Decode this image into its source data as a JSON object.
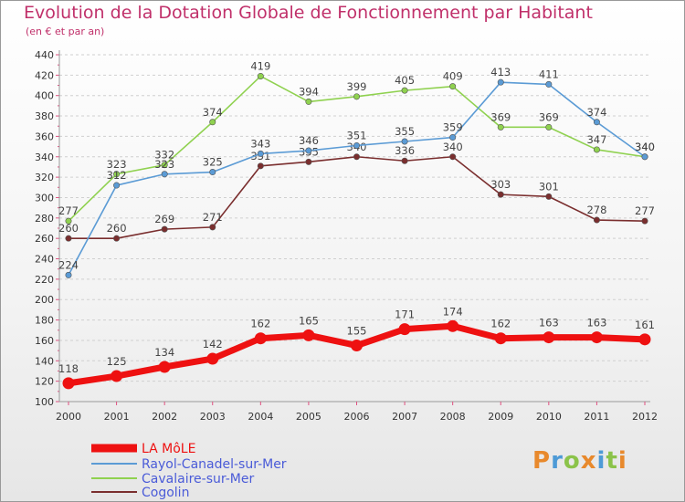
{
  "header": {
    "title": "Evolution de la Dotation Globale de Fonctionnement par Habitant",
    "subtitle": "(en € et par an)"
  },
  "logo": {
    "text": "Proxiti",
    "colors": [
      "#e8892c",
      "#4d9ad6",
      "#8bc34a",
      "#e8892c",
      "#4d9ad6",
      "#8bc34a",
      "#e8892c"
    ]
  },
  "chart_data": {
    "type": "line",
    "x": [
      "2000",
      "2001",
      "2002",
      "2003",
      "2004",
      "2005",
      "2006",
      "2007",
      "2008",
      "2009",
      "2010",
      "2011",
      "2012"
    ],
    "ylim": [
      100,
      440
    ],
    "yticks": [
      100,
      120,
      140,
      160,
      180,
      200,
      220,
      240,
      260,
      280,
      300,
      320,
      340,
      360,
      380,
      400,
      420,
      440
    ],
    "grid": "horizontal dashed",
    "legend_position": "bottom-left",
    "series": [
      {
        "name": "LA MôLE",
        "color": "#ee1111",
        "values": [
          118,
          125,
          134,
          142,
          162,
          165,
          155,
          171,
          174,
          162,
          163,
          163,
          161
        ]
      },
      {
        "name": "Rayol-Canadel-sur-Mer",
        "color": "#5b9bd5",
        "values": [
          224,
          312,
          323,
          325,
          343,
          346,
          351,
          355,
          359,
          413,
          411,
          374,
          340
        ]
      },
      {
        "name": "Cavalaire-sur-Mer",
        "color": "#8fd14f",
        "values": [
          277,
          323,
          332,
          374,
          419,
          394,
          399,
          405,
          409,
          369,
          369,
          347,
          340
        ]
      },
      {
        "name": "Cogolin",
        "color": "#7a2e2e",
        "values": [
          260,
          260,
          269,
          271,
          331,
          335,
          340,
          336,
          340,
          303,
          301,
          278,
          277
        ]
      }
    ]
  }
}
